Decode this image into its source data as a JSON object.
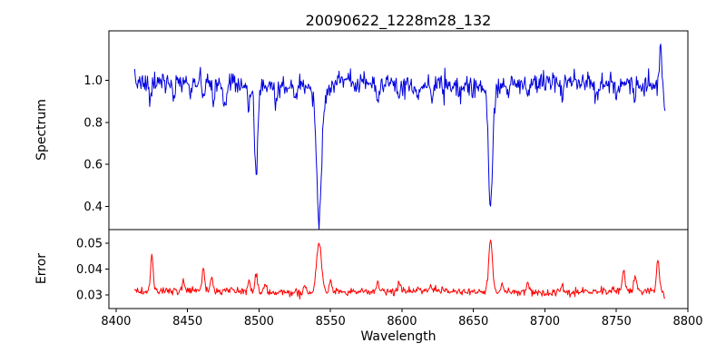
{
  "figure": {
    "background": "#ffffff",
    "frame_color": "#000000"
  },
  "chart_data": {
    "type": "line",
    "title": "20090622_1228m28_132",
    "xlabel": "Wavelength",
    "xlim": [
      8395,
      8800
    ],
    "xticks": [
      8400,
      8450,
      8500,
      8550,
      8600,
      8650,
      8700,
      8750,
      8800
    ],
    "xtick_labels": [
      "8400",
      "8450",
      "8500",
      "8550",
      "8600",
      "8650",
      "8700",
      "8750",
      "8800"
    ],
    "x_start": 8413,
    "x_end": 8784,
    "x_step": 0.5,
    "legend": "none",
    "grid": "off",
    "notes": "Two vertically stacked panels sharing the wavelength axis. Top: normalized spectrum (blue) with continuum near 1.0 and deep absorption lines of the Ca II infrared triplet at 8498, 8542 and 8662 (minima about 0.52, 0.35 and 0.40), upward spike to about 1.15 at the red end. Bottom: error spectrum (red) with baseline near 0.031 and peaks up to about 0.052 at the strong absorption lines.",
    "panels": [
      {
        "name": "spectrum",
        "ylabel": "Spectrum",
        "ylim": [
          0.29,
          1.235
        ],
        "yticks": [
          0.4,
          0.6,
          0.8,
          1.0
        ],
        "ytick_labels": [
          "0.4",
          "0.6",
          "0.8",
          "1.0"
        ],
        "color": "#0000dd",
        "baseline": 0.985,
        "noise_sigma": 0.025,
        "wiggle": {
          "amp": 0.01,
          "period": 130
        },
        "seed": 7,
        "features": [
          {
            "center": 8424,
            "amplitude": -0.1,
            "sigma": 0.9
          },
          {
            "center": 8440,
            "amplitude": -0.09,
            "sigma": 0.9
          },
          {
            "center": 8452,
            "amplitude": -0.07,
            "sigma": 0.8
          },
          {
            "center": 8461,
            "amplitude": -0.08,
            "sigma": 0.9
          },
          {
            "center": 8468,
            "amplitude": -0.09,
            "sigma": 0.8
          },
          {
            "center": 8476,
            "amplitude": -0.1,
            "sigma": 1.0
          },
          {
            "center": 8493,
            "amplitude": -0.12,
            "sigma": 0.9
          },
          {
            "center": 8498,
            "amplitude": -0.44,
            "sigma": 1.1,
            "note": "Ca II 8498"
          },
          {
            "center": 8512,
            "amplitude": -0.08,
            "sigma": 0.9
          },
          {
            "center": 8526,
            "amplitude": -0.06,
            "sigma": 0.8
          },
          {
            "center": 8542,
            "amplitude": -0.56,
            "sigma": 1.7,
            "note": "Ca II 8542"
          },
          {
            "center": 8542,
            "amplitude": -0.08,
            "sigma": 4.0
          },
          {
            "center": 8583,
            "amplitude": -0.08,
            "sigma": 0.9
          },
          {
            "center": 8598,
            "amplitude": -0.08,
            "sigma": 0.9
          },
          {
            "center": 8611,
            "amplitude": -0.06,
            "sigma": 0.8
          },
          {
            "center": 8621,
            "amplitude": -0.07,
            "sigma": 0.9
          },
          {
            "center": 8641,
            "amplitude": -0.06,
            "sigma": 0.8
          },
          {
            "center": 8662,
            "amplitude": -0.52,
            "sigma": 1.3,
            "note": "Ca II 8662"
          },
          {
            "center": 8662,
            "amplitude": -0.06,
            "sigma": 3.0
          },
          {
            "center": 8674,
            "amplitude": -0.06,
            "sigma": 0.8
          },
          {
            "center": 8688,
            "amplitude": -0.07,
            "sigma": 0.9
          },
          {
            "center": 8712,
            "amplitude": -0.08,
            "sigma": 0.9
          },
          {
            "center": 8736,
            "amplitude": -0.08,
            "sigma": 0.9
          },
          {
            "center": 8750,
            "amplitude": -0.06,
            "sigma": 0.8
          },
          {
            "center": 8763,
            "amplitude": -0.07,
            "sigma": 0.9
          },
          {
            "center": 8781,
            "amplitude": 0.18,
            "sigma": 0.7
          },
          {
            "center": 8784.5,
            "amplitude": -0.2,
            "sigma": 1.0
          }
        ]
      },
      {
        "name": "error",
        "ylabel": "Error",
        "ylim": [
          0.0248,
          0.0553
        ],
        "yticks": [
          0.03,
          0.04,
          0.05
        ],
        "ytick_labels": [
          "0.03",
          "0.04",
          "0.05"
        ],
        "color": "#ff0000",
        "baseline": 0.0313,
        "noise_sigma": 0.0007,
        "wiggle": {
          "amp": 0.0004,
          "period": 160
        },
        "seed": 12,
        "features": [
          {
            "center": 8425,
            "amplitude": 0.0135,
            "sigma": 0.9
          },
          {
            "center": 8447,
            "amplitude": 0.004,
            "sigma": 0.8
          },
          {
            "center": 8461,
            "amplitude": 0.0085,
            "sigma": 0.9
          },
          {
            "center": 8467,
            "amplitude": 0.005,
            "sigma": 0.8
          },
          {
            "center": 8493,
            "amplitude": 0.005,
            "sigma": 0.8
          },
          {
            "center": 8498,
            "amplitude": 0.007,
            "sigma": 0.9
          },
          {
            "center": 8504,
            "amplitude": 0.003,
            "sigma": 0.8
          },
          {
            "center": 8532,
            "amplitude": 0.003,
            "sigma": 0.8
          },
          {
            "center": 8542,
            "amplitude": 0.019,
            "sigma": 1.8
          },
          {
            "center": 8550,
            "amplitude": 0.004,
            "sigma": 1.0
          },
          {
            "center": 8583,
            "amplitude": 0.0035,
            "sigma": 0.9
          },
          {
            "center": 8598,
            "amplitude": 0.003,
            "sigma": 0.9
          },
          {
            "center": 8620,
            "amplitude": 0.0025,
            "sigma": 0.8
          },
          {
            "center": 8662,
            "amplitude": 0.021,
            "sigma": 1.3
          },
          {
            "center": 8670,
            "amplitude": 0.003,
            "sigma": 0.9
          },
          {
            "center": 8688,
            "amplitude": 0.0035,
            "sigma": 0.9
          },
          {
            "center": 8712,
            "amplitude": 0.003,
            "sigma": 0.8
          },
          {
            "center": 8755,
            "amplitude": 0.008,
            "sigma": 0.9
          },
          {
            "center": 8763,
            "amplitude": 0.006,
            "sigma": 0.9
          },
          {
            "center": 8779,
            "amplitude": 0.012,
            "sigma": 0.9
          },
          {
            "center": 8785,
            "amplitude": -0.005,
            "sigma": 1.2
          }
        ]
      }
    ]
  }
}
